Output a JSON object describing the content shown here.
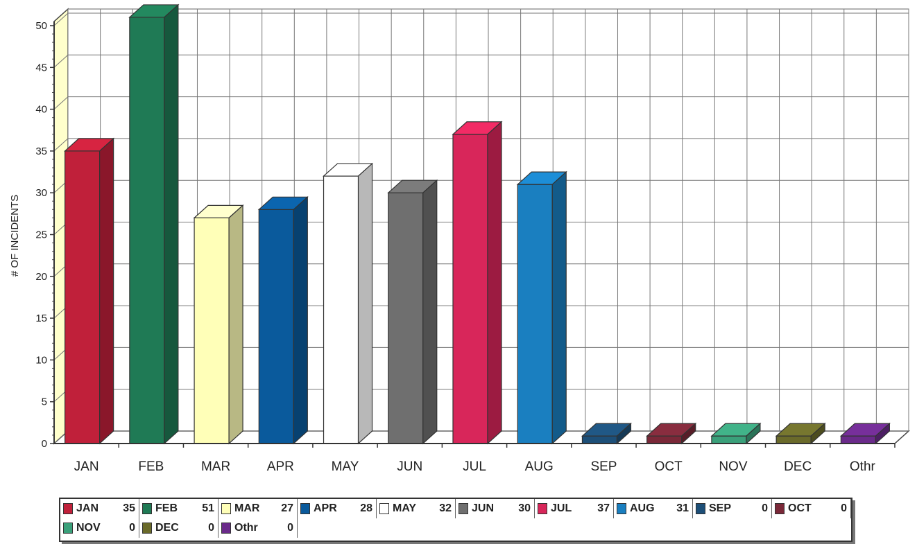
{
  "chart_data": {
    "type": "bar",
    "title": "",
    "xlabel": "",
    "ylabel": "# OF INCIDENTS",
    "ylim": [
      0,
      50
    ],
    "yticks": [
      "0",
      "5",
      "10",
      "15",
      "20",
      "25",
      "30",
      "35",
      "40",
      "45",
      "50"
    ],
    "grid": true,
    "legend_position": "bottom",
    "categories": [
      "JAN",
      "FEB",
      "MAR",
      "APR",
      "MAY",
      "JUN",
      "JUL",
      "AUG",
      "SEP",
      "OCT",
      "NOV",
      "DEC",
      "Othr"
    ],
    "values": [
      35,
      51,
      27,
      28,
      32,
      30,
      37,
      31,
      0,
      0,
      0,
      0,
      0
    ],
    "colors": [
      "#c0203a",
      "#1f7a55",
      "#ffffb8",
      "#0a5a9c",
      "#ffffff",
      "#6f6f6f",
      "#d8265a",
      "#1a7fc0",
      "#1d4f78",
      "#7a2838",
      "#3aa07a",
      "#6a6a2a",
      "#6a2a8a"
    ],
    "legend": [
      {
        "name": "JAN",
        "value": "35"
      },
      {
        "name": "FEB",
        "value": "51"
      },
      {
        "name": "MAR",
        "value": "27"
      },
      {
        "name": "APR",
        "value": "28"
      },
      {
        "name": "MAY",
        "value": "32"
      },
      {
        "name": "JUN",
        "value": "30"
      },
      {
        "name": "JUL",
        "value": "37"
      },
      {
        "name": "AUG",
        "value": "31"
      },
      {
        "name": "SEP",
        "value": "0"
      },
      {
        "name": "OCT",
        "value": "0"
      },
      {
        "name": "NOV",
        "value": "0"
      },
      {
        "name": "DEC",
        "value": "0"
      },
      {
        "name": "Othr",
        "value": "0"
      }
    ]
  }
}
